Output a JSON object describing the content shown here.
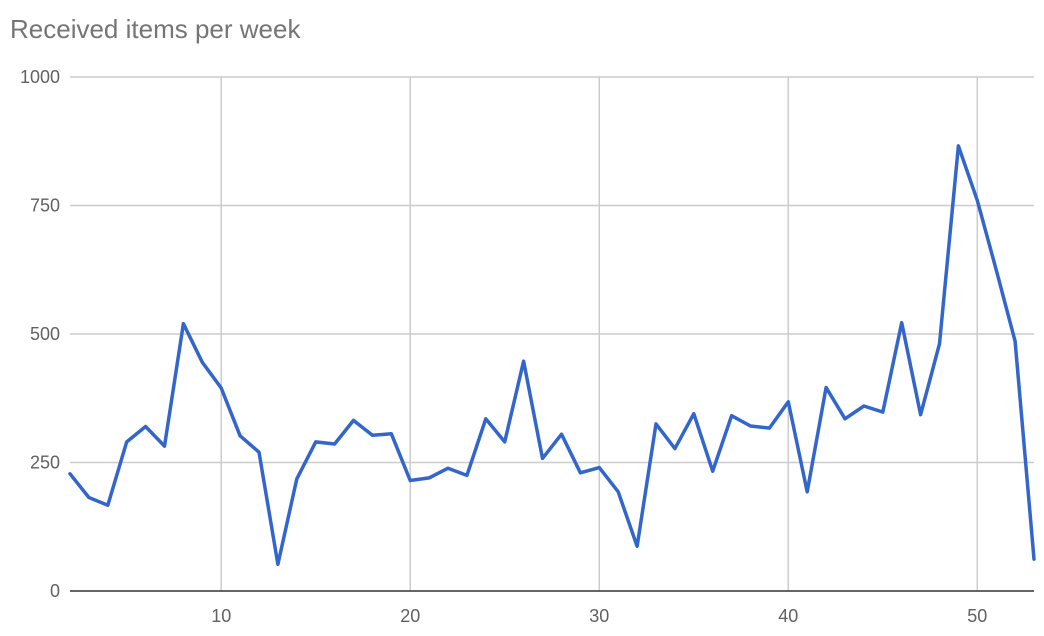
{
  "chart_data": {
    "type": "line",
    "title": "Received items per week",
    "xlabel": "",
    "ylabel": "",
    "xlim": [
      2,
      53
    ],
    "ylim": [
      0,
      1000
    ],
    "x_ticks": [
      10,
      20,
      30,
      40,
      50
    ],
    "y_ticks": [
      0,
      250,
      500,
      750,
      1000
    ],
    "grid": true,
    "legend": "none",
    "series": [
      {
        "color": "#3366cc",
        "x": [
          2,
          3,
          4,
          5,
          6,
          7,
          8,
          9,
          10,
          11,
          12,
          13,
          14,
          15,
          16,
          17,
          18,
          19,
          20,
          21,
          22,
          23,
          24,
          25,
          26,
          27,
          28,
          29,
          30,
          31,
          32,
          33,
          34,
          35,
          36,
          37,
          38,
          39,
          40,
          41,
          42,
          43,
          44,
          45,
          46,
          47,
          48,
          49,
          50,
          51,
          52,
          53
        ],
        "y": [
          228,
          182,
          167,
          290,
          320,
          282,
          520,
          445,
          395,
          302,
          270,
          52,
          218,
          290,
          286,
          332,
          303,
          306,
          215,
          220,
          239,
          225,
          335,
          290,
          447,
          258,
          305,
          230,
          240,
          193,
          87,
          325,
          277,
          345,
          233,
          341,
          321,
          317,
          368,
          193,
          396,
          335,
          360,
          348,
          522,
          343,
          481,
          866,
          760,
          625,
          486,
          62
        ]
      }
    ]
  }
}
